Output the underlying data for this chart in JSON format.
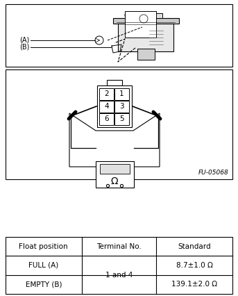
{
  "bg_color": "#ffffff",
  "fig_width": 3.43,
  "fig_height": 4.26,
  "diagram_label": "FU-05068",
  "table_headers": [
    "Float position",
    "Terminal No.",
    "Standard"
  ],
  "table_row1": [
    "FULL (A)",
    "1 and 4",
    "8.7±1.0 Ω"
  ],
  "table_row2": [
    "EMPTY (B)",
    "1 and 4",
    "139.1±2.0 Ω"
  ],
  "font_size_table": 7.5,
  "conn_labels_left": [
    "2",
    "4",
    "6"
  ],
  "conn_labels_right": [
    "1",
    "3",
    "5"
  ],
  "label_A": "(A)",
  "label_B": "(B)"
}
